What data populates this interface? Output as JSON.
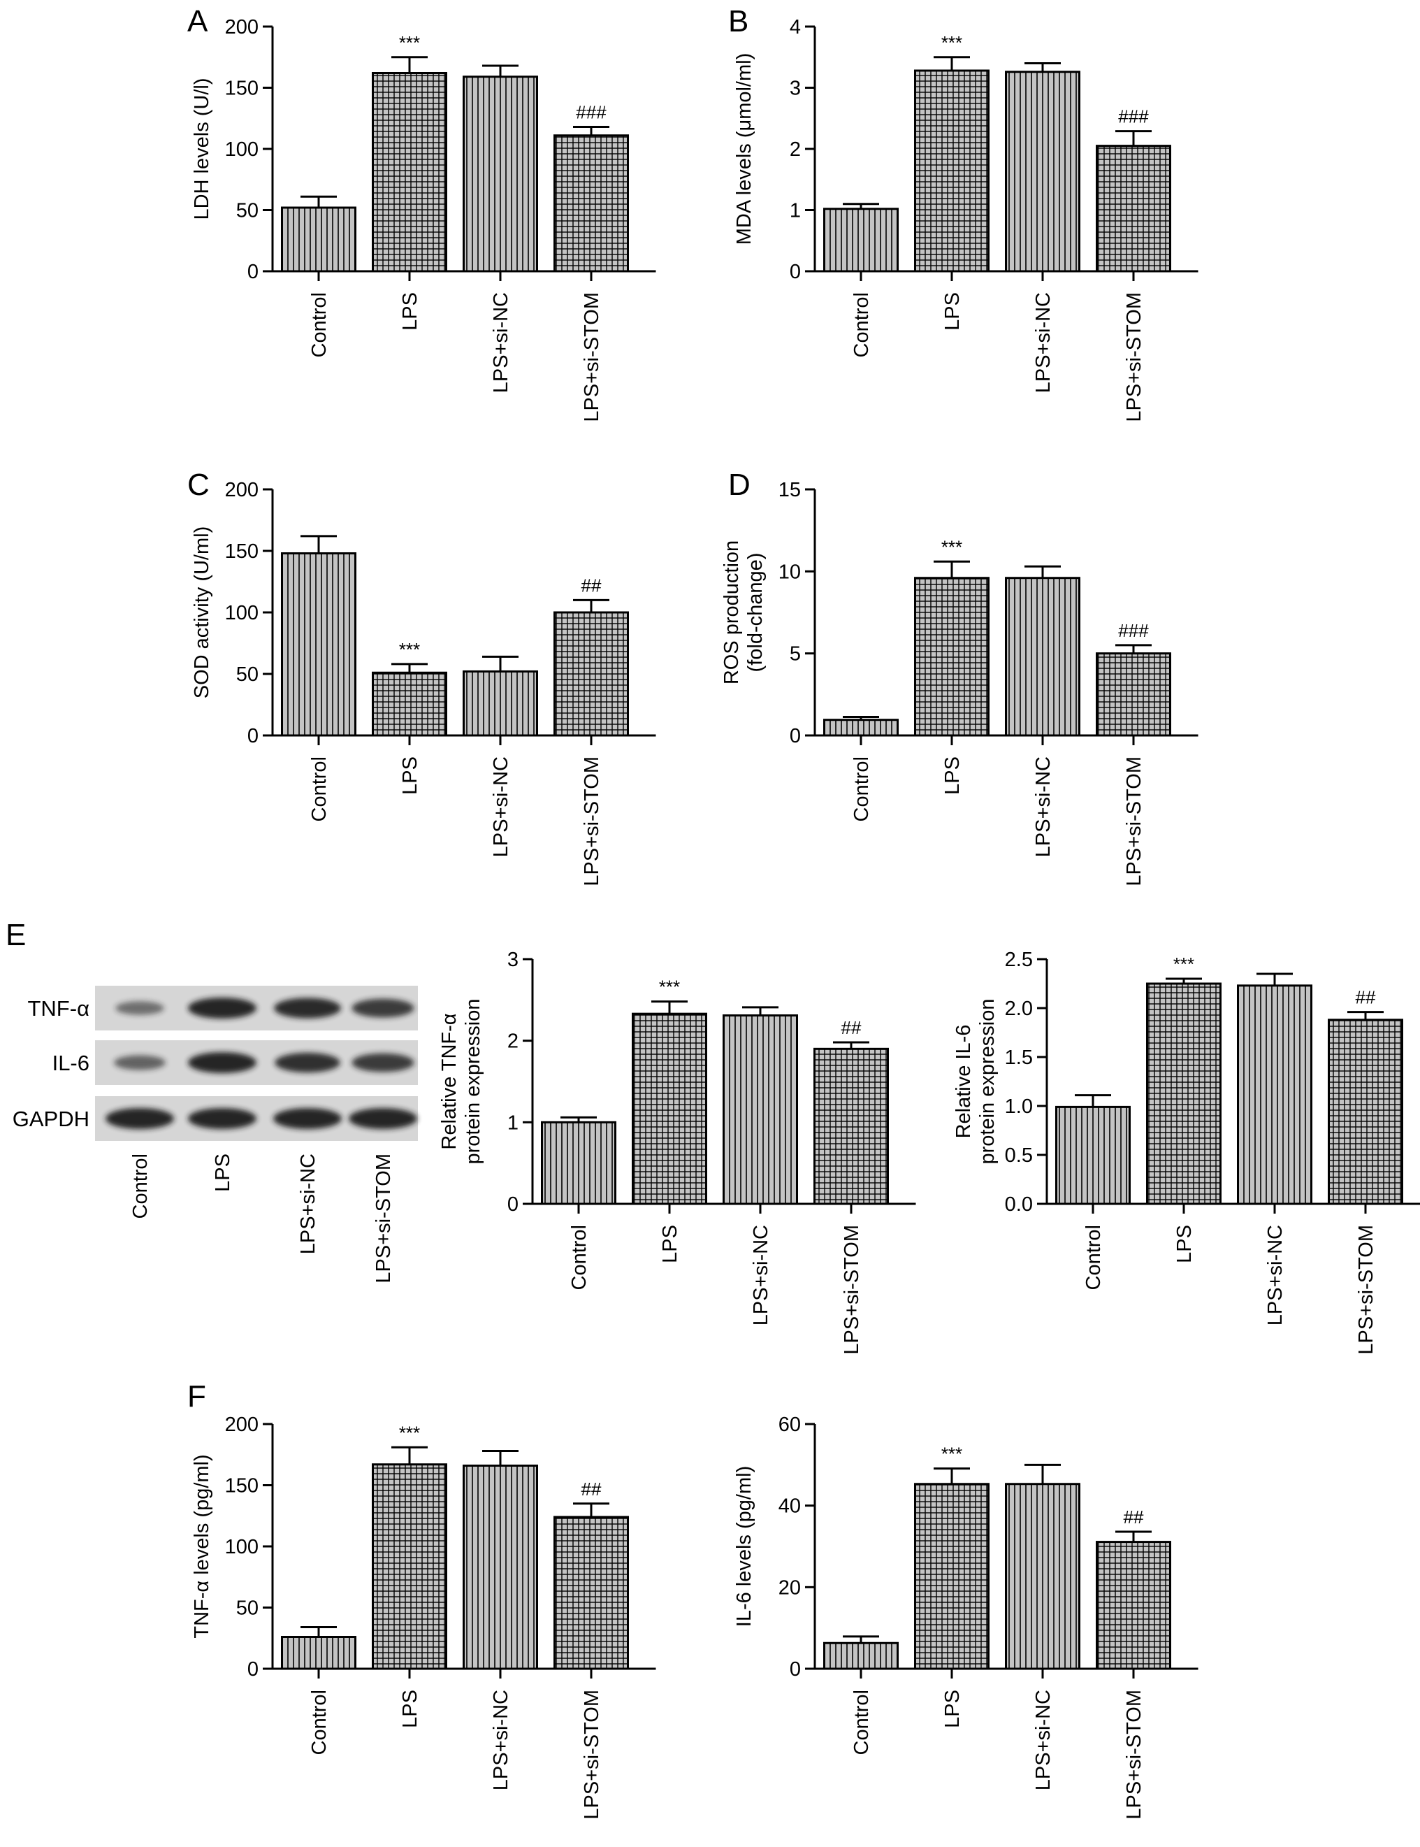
{
  "panels": {
    "A": "A",
    "B": "B",
    "C": "C",
    "D": "D",
    "E": "E",
    "F": "F"
  },
  "colors": {
    "bar_fill": "#c4c4c4",
    "line": "#000000",
    "blot_bg": "#d6d6d6",
    "band": "#1a1a1a"
  },
  "western_blot": {
    "rows": [
      "TNF-α",
      "IL-6",
      "GAPDH"
    ],
    "lanes": [
      "Control",
      "LPS",
      "LPS+si-NC",
      "LPS+si-STOM"
    ],
    "intensity": [
      [
        0.35,
        1.0,
        0.95,
        0.8
      ],
      [
        0.45,
        1.0,
        0.9,
        0.8
      ],
      [
        1.0,
        1.0,
        1.0,
        1.0
      ]
    ]
  },
  "chart_data": [
    {
      "id": "A",
      "type": "bar",
      "categories": [
        "Control",
        "LPS",
        "LPS+si-NC",
        "LPS+si-STOM"
      ],
      "values": [
        52,
        162,
        159,
        111
      ],
      "errors": [
        9,
        13,
        9,
        7
      ],
      "significance": [
        "",
        "***",
        "",
        "###"
      ],
      "patterns": [
        "vertical",
        "grid",
        "vertical",
        "grid"
      ],
      "ylabel": [
        "LDH levels (U/l)"
      ],
      "ylim": [
        0,
        200
      ],
      "yticks": [
        "0",
        "50",
        "100",
        "150",
        "200"
      ]
    },
    {
      "id": "B",
      "type": "bar",
      "categories": [
        "Control",
        "LPS",
        "LPS+si-NC",
        "LPS+si-STOM"
      ],
      "values": [
        1.02,
        3.28,
        3.26,
        2.05
      ],
      "errors": [
        0.08,
        0.22,
        0.14,
        0.24
      ],
      "significance": [
        "",
        "***",
        "",
        "###"
      ],
      "patterns": [
        "vertical",
        "grid",
        "vertical",
        "grid"
      ],
      "ylabel": [
        "MDA levels (μmol/ml)"
      ],
      "ylim": [
        0,
        4
      ],
      "yticks": [
        "0",
        "1",
        "2",
        "3",
        "4"
      ]
    },
    {
      "id": "C",
      "type": "bar",
      "categories": [
        "Control",
        "LPS",
        "LPS+si-NC",
        "LPS+si-STOM"
      ],
      "values": [
        148,
        51,
        52,
        100
      ],
      "errors": [
        14,
        7,
        12,
        10
      ],
      "significance": [
        "",
        "***",
        "",
        "##"
      ],
      "patterns": [
        "vertical",
        "grid",
        "vertical",
        "grid"
      ],
      "ylabel": [
        "SOD activity (U/ml)"
      ],
      "ylim": [
        0,
        200
      ],
      "yticks": [
        "0",
        "50",
        "100",
        "150",
        "200"
      ]
    },
    {
      "id": "D",
      "type": "bar",
      "categories": [
        "Control",
        "LPS",
        "LPS+si-NC",
        "LPS+si-STOM"
      ],
      "values": [
        0.95,
        9.6,
        9.6,
        5.0
      ],
      "errors": [
        0.18,
        1.0,
        0.7,
        0.5
      ],
      "significance": [
        "",
        "***",
        "",
        "###"
      ],
      "patterns": [
        "vertical",
        "grid",
        "vertical",
        "grid"
      ],
      "ylabel": [
        "ROS production",
        "(fold-change)"
      ],
      "ylim": [
        0,
        15
      ],
      "yticks": [
        "0",
        "5",
        "10",
        "15"
      ]
    },
    {
      "id": "E1",
      "type": "bar",
      "categories": [
        "Control",
        "LPS",
        "LPS+si-NC",
        "LPS+si-STOM"
      ],
      "values": [
        1.0,
        2.33,
        2.31,
        1.9
      ],
      "errors": [
        0.06,
        0.15,
        0.1,
        0.08
      ],
      "significance": [
        "",
        "***",
        "",
        "##"
      ],
      "patterns": [
        "vertical",
        "grid",
        "vertical",
        "grid"
      ],
      "ylabel": [
        "Relative TNF-α",
        "protein expression"
      ],
      "ylim": [
        0,
        3
      ],
      "yticks": [
        "0",
        "1",
        "2",
        "3"
      ]
    },
    {
      "id": "E2",
      "type": "bar",
      "categories": [
        "Control",
        "LPS",
        "LPS+si-NC",
        "LPS+si-STOM"
      ],
      "values": [
        0.99,
        2.25,
        2.23,
        1.88
      ],
      "errors": [
        0.12,
        0.05,
        0.12,
        0.08
      ],
      "significance": [
        "",
        "***",
        "",
        "##"
      ],
      "patterns": [
        "vertical",
        "grid",
        "vertical",
        "grid"
      ],
      "ylabel": [
        "Relative IL-6",
        "protein expression"
      ],
      "ylim": [
        0,
        2.5
      ],
      "yticks": [
        "0.0",
        "0.5",
        "1.0",
        "1.5",
        "2.0",
        "2.5"
      ]
    },
    {
      "id": "F1",
      "type": "bar",
      "categories": [
        "Control",
        "LPS",
        "LPS+si-NC",
        "LPS+si-STOM"
      ],
      "values": [
        26,
        167,
        166,
        124
      ],
      "errors": [
        8,
        14,
        12,
        11
      ],
      "significance": [
        "",
        "***",
        "",
        "##"
      ],
      "patterns": [
        "vertical",
        "grid",
        "vertical",
        "grid"
      ],
      "ylabel": [
        "TNF-α levels (pg/ml)"
      ],
      "ylim": [
        0,
        200
      ],
      "yticks": [
        "0",
        "50",
        "100",
        "150",
        "200"
      ]
    },
    {
      "id": "F2",
      "type": "bar",
      "categories": [
        "Control",
        "LPS",
        "LPS+si-NC",
        "LPS+si-STOM"
      ],
      "values": [
        6.3,
        45.3,
        45.3,
        31.1
      ],
      "errors": [
        1.6,
        3.8,
        4.7,
        2.5
      ],
      "significance": [
        "",
        "***",
        "",
        "##"
      ],
      "patterns": [
        "vertical",
        "grid",
        "vertical",
        "grid"
      ],
      "ylabel": [
        "IL-6 levels (pg/ml)"
      ],
      "ylim": [
        0,
        60
      ],
      "yticks": [
        "0",
        "20",
        "40",
        "60"
      ]
    }
  ]
}
